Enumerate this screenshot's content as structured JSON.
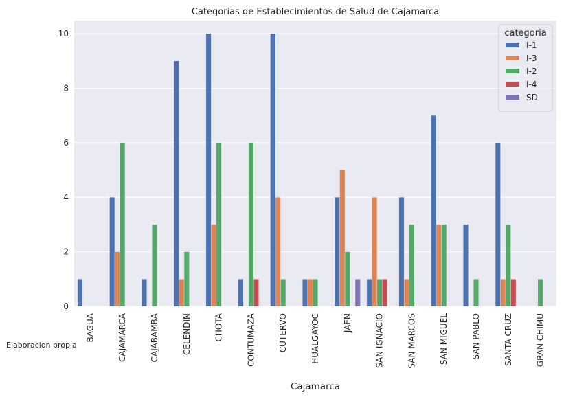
{
  "caption": "Elaboracion propia",
  "chart_data": {
    "type": "bar",
    "title": "Categorias de Establecimientos de Salud de Cajamarca",
    "xlabel": "Cajamarca",
    "ylabel": "",
    "ylim": [
      0,
      10.5
    ],
    "yticks": [
      0,
      2,
      4,
      6,
      8,
      10
    ],
    "grid": true,
    "legend_title": "categoria",
    "legend_position": "top-right",
    "categories": [
      "BAGUA",
      "CAJAMARCA",
      "CAJABAMBA",
      "CELENDIN",
      "CHOTA",
      "CONTUMAZA",
      "CUTERVO",
      "HUALGAYOC",
      "JAEN",
      "SAN IGNACIO",
      "SAN MARCOS",
      "SAN MIGUEL",
      "SAN PABLO",
      "SANTA CRUZ",
      "GRAN CHIMU"
    ],
    "series": [
      {
        "name": "I-1",
        "color": "#4c72b0",
        "values": [
          1,
          4,
          1,
          9,
          10,
          1,
          10,
          1,
          4,
          1,
          4,
          7,
          3,
          6,
          0
        ]
      },
      {
        "name": "I-3",
        "color": "#dd8452",
        "values": [
          0,
          2,
          0,
          1,
          3,
          0,
          4,
          1,
          5,
          4,
          1,
          3,
          0,
          1,
          0
        ]
      },
      {
        "name": "I-2",
        "color": "#55a868",
        "values": [
          0,
          6,
          3,
          2,
          6,
          6,
          1,
          1,
          2,
          1,
          3,
          3,
          1,
          3,
          1
        ]
      },
      {
        "name": "I-4",
        "color": "#c44e52",
        "values": [
          0,
          0,
          0,
          0,
          0,
          1,
          0,
          0,
          0,
          1,
          0,
          0,
          0,
          1,
          0
        ]
      },
      {
        "name": "SD",
        "color": "#8172b3",
        "values": [
          0,
          0,
          0,
          0,
          0,
          0,
          0,
          0,
          1,
          0,
          0,
          0,
          0,
          0,
          0
        ]
      }
    ]
  }
}
